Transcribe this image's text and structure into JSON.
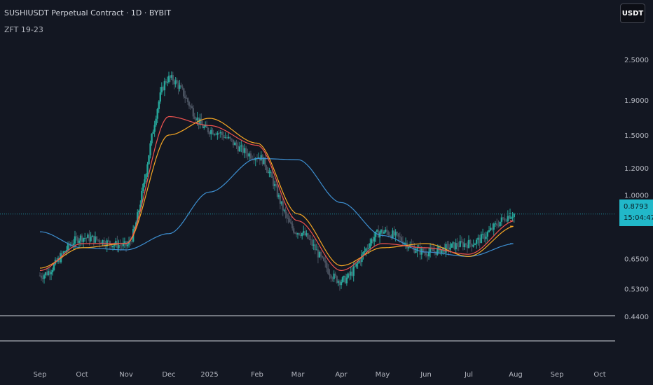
{
  "header": {
    "title": "SUSHIUSDT Perpetual Contract · 1D · BYBIT",
    "indicator": "ZFT 19-23",
    "currency_button": "USDT"
  },
  "price_badge": {
    "price": "0.8793",
    "countdown": "15:04:47"
  },
  "colors": {
    "background": "#131722",
    "up_candle": "#26a69a",
    "down_candle": "#4a5260",
    "ma_fast": "#ef5350",
    "ma_mid": "#f5a623",
    "ma_slow": "#3d8fd1",
    "last_price": "#21b8c9"
  },
  "chart_data": {
    "type": "line",
    "title": "SUSHIUSDT Perpetual Contract · 1D · BYBIT",
    "x_ticks": [
      "Sep",
      "Oct",
      "Nov",
      "Dec",
      "2025",
      "Feb",
      "Mar",
      "Apr",
      "May",
      "Jun",
      "Jul",
      "Aug",
      "Sep",
      "Oct"
    ],
    "y_ticks": [
      2.5,
      1.9,
      1.5,
      1.2,
      1.0,
      0.65,
      0.53,
      0.44
    ],
    "y_tick_labels": [
      "2.5000",
      "1.9000",
      "1.5000",
      "1.2000",
      "1.0000",
      "0.6500",
      "0.5300",
      "0.4400"
    ],
    "y_scale": "log",
    "last_price": 0.8793,
    "series": [
      {
        "role": "close",
        "x": [
          "Sep",
          "Oct",
          "Nov",
          "Dec",
          "2025",
          "Feb",
          "Mar",
          "Apr",
          "May",
          "Jun",
          "Jul",
          "Aug"
        ],
        "values": [
          0.58,
          0.75,
          0.71,
          2.2,
          1.55,
          1.3,
          0.78,
          0.56,
          0.78,
          0.68,
          0.72,
          0.88
        ]
      },
      {
        "role": "ma_fast",
        "x": [
          "Sep",
          "Oct",
          "Nov",
          "Dec",
          "2025",
          "Feb",
          "Mar",
          "Apr",
          "May",
          "Jun",
          "Jul",
          "Aug"
        ],
        "values": [
          0.6,
          0.72,
          0.72,
          1.7,
          1.6,
          1.4,
          0.84,
          0.6,
          0.72,
          0.7,
          0.67,
          0.84
        ]
      },
      {
        "role": "ma_mid",
        "x": [
          "Sep",
          "Oct",
          "Nov",
          "Dec",
          "2025",
          "Feb",
          "Mar",
          "Apr",
          "May",
          "Jun",
          "Jul",
          "Aug"
        ],
        "values": [
          0.61,
          0.7,
          0.72,
          1.5,
          1.68,
          1.42,
          0.88,
          0.62,
          0.7,
          0.72,
          0.66,
          0.81
        ]
      },
      {
        "role": "ma_slow",
        "x": [
          "Sep",
          "Oct",
          "Nov",
          "Dec",
          "2025",
          "Feb",
          "Mar",
          "Apr",
          "May",
          "Jun",
          "Jul",
          "Aug"
        ],
        "values": [
          0.78,
          0.7,
          0.69,
          0.77,
          1.02,
          1.28,
          1.27,
          0.95,
          0.76,
          0.68,
          0.66,
          0.72
        ]
      }
    ]
  }
}
